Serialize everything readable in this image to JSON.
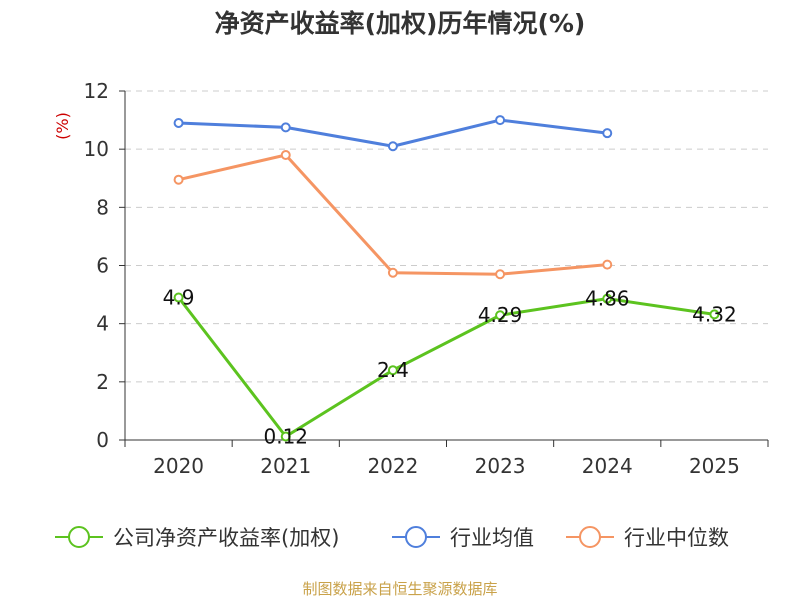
{
  "chart_data": {
    "type": "line",
    "title": "净资产收益率(加权)历年情况(%)",
    "ylabel": "(%)",
    "xlabel": "",
    "ylim": [
      0,
      12
    ],
    "yticks": [
      "0",
      "2",
      "4",
      "6",
      "8",
      "10",
      "12"
    ],
    "categories": [
      "2020",
      "2021",
      "2022",
      "2023",
      "2024",
      "2025"
    ],
    "grid": true,
    "legend_position": "bottom",
    "series": [
      {
        "name": "公司净资产收益率(加权)",
        "color": "#5cc31f",
        "values": [
          4.9,
          0.12,
          2.4,
          4.29,
          4.86,
          4.32
        ],
        "labels": [
          "4.9",
          "0.12",
          "2.4",
          "4.29",
          "4.86",
          "4.32"
        ]
      },
      {
        "name": "行业均值",
        "color": "#4f7fdc",
        "values": [
          10.9,
          10.75,
          10.1,
          11.0,
          10.55,
          null
        ]
      },
      {
        "name": "行业中位数",
        "color": "#f59563",
        "values": [
          8.95,
          9.8,
          5.75,
          5.7,
          6.03,
          null
        ]
      }
    ]
  },
  "source": "制图数据来自恒生聚源数据库"
}
